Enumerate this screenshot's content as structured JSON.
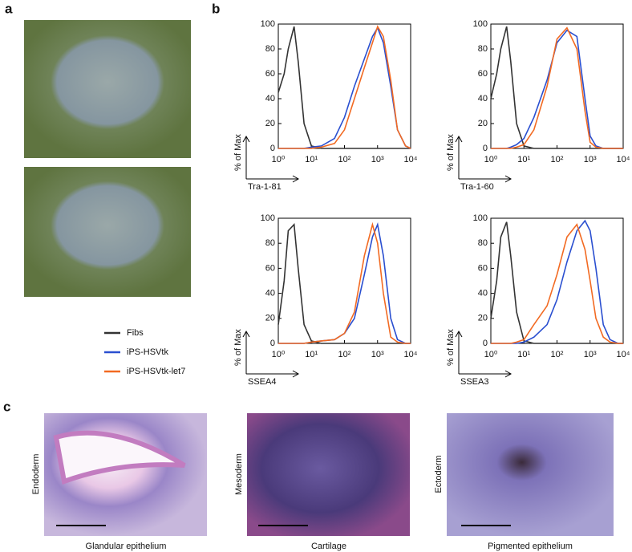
{
  "panels": {
    "a": "a",
    "b": "b",
    "c": "c"
  },
  "legend": [
    {
      "name": "Fibs",
      "color": "#333333"
    },
    {
      "name": "iPS-HSVtk",
      "color": "#2a4fd0"
    },
    {
      "name": "iPS-HSVtk-let7",
      "color": "#f26a22"
    }
  ],
  "chart_data": [
    {
      "type": "line",
      "xlabel": "Tra-1-81",
      "ylabel": "% of Max",
      "xscale": "log",
      "xlim": [
        1,
        10000
      ],
      "ylim": [
        0,
        100
      ],
      "xticks": [
        {
          "value": 1,
          "label": "10⁰"
        },
        {
          "value": 10,
          "label": "10¹"
        },
        {
          "value": 100,
          "label": "10²"
        },
        {
          "value": 1000,
          "label": "10³"
        },
        {
          "value": 10000,
          "label": "10⁴"
        }
      ],
      "yticks": [
        0,
        20,
        40,
        60,
        80,
        100
      ],
      "x": [
        1,
        1.5,
        2,
        3,
        4,
        6,
        10,
        20,
        50,
        100,
        200,
        400,
        700,
        1000,
        1500,
        2500,
        4000,
        7000,
        10000
      ],
      "series": [
        {
          "color": "#333333",
          "values": [
            45,
            60,
            80,
            98,
            70,
            20,
            2,
            0,
            0,
            0,
            0,
            0,
            0,
            0,
            0,
            0,
            0,
            0,
            0
          ]
        },
        {
          "color": "#2a4fd0",
          "values": [
            0,
            0,
            0,
            0,
            0,
            0,
            1,
            2,
            8,
            25,
            50,
            72,
            90,
            97,
            85,
            50,
            15,
            2,
            0
          ]
        },
        {
          "color": "#f26a22",
          "values": [
            0,
            0,
            0,
            0,
            0,
            0,
            0,
            1,
            4,
            15,
            40,
            65,
            85,
            98,
            90,
            55,
            15,
            2,
            0
          ]
        }
      ]
    },
    {
      "type": "line",
      "xlabel": "Tra-1-60",
      "ylabel": "% of Max",
      "xscale": "log",
      "xlim": [
        1,
        10000
      ],
      "ylim": [
        0,
        100
      ],
      "xticks": [
        {
          "value": 1,
          "label": "10⁰"
        },
        {
          "value": 10,
          "label": "10¹"
        },
        {
          "value": 100,
          "label": "10²"
        },
        {
          "value": 1000,
          "label": "10³"
        },
        {
          "value": 10000,
          "label": "10⁴"
        }
      ],
      "yticks": [
        0,
        20,
        40,
        60,
        80,
        100
      ],
      "x": [
        1,
        1.5,
        2,
        3,
        4,
        6,
        10,
        20,
        50,
        100,
        200,
        400,
        700,
        1000,
        1500,
        2500,
        4000,
        7000,
        10000
      ],
      "series": [
        {
          "color": "#333333",
          "values": [
            40,
            60,
            80,
            98,
            70,
            20,
            2,
            0,
            0,
            0,
            0,
            0,
            0,
            0,
            0,
            0,
            0,
            0,
            0
          ]
        },
        {
          "color": "#2a4fd0",
          "values": [
            0,
            0,
            0,
            0,
            1,
            3,
            8,
            25,
            55,
            85,
            95,
            90,
            40,
            10,
            2,
            0,
            0,
            0,
            0
          ]
        },
        {
          "color": "#f26a22",
          "values": [
            0,
            0,
            0,
            0,
            0,
            1,
            3,
            15,
            50,
            88,
            97,
            80,
            30,
            5,
            1,
            0,
            0,
            0,
            0
          ]
        }
      ]
    },
    {
      "type": "line",
      "xlabel": "SSEA4",
      "ylabel": "% of Max",
      "xscale": "log",
      "xlim": [
        1,
        10000
      ],
      "ylim": [
        0,
        100
      ],
      "xticks": [
        {
          "value": 1,
          "label": "10⁰"
        },
        {
          "value": 10,
          "label": "10¹"
        },
        {
          "value": 100,
          "label": "10²"
        },
        {
          "value": 1000,
          "label": "10³"
        },
        {
          "value": 10000,
          "label": "10⁴"
        }
      ],
      "yticks": [
        0,
        20,
        40,
        60,
        80,
        100
      ],
      "x": [
        1,
        1.5,
        2,
        3,
        4,
        6,
        10,
        20,
        50,
        100,
        200,
        400,
        700,
        1000,
        1500,
        2500,
        4000,
        7000,
        10000
      ],
      "series": [
        {
          "color": "#333333",
          "values": [
            15,
            50,
            90,
            95,
            60,
            15,
            2,
            0,
            0,
            0,
            0,
            0,
            0,
            0,
            0,
            0,
            0,
            0,
            0
          ]
        },
        {
          "color": "#2a4fd0",
          "values": [
            0,
            0,
            0,
            0,
            0,
            0,
            1,
            2,
            3,
            8,
            20,
            55,
            85,
            95,
            70,
            20,
            3,
            0,
            0
          ]
        },
        {
          "color": "#f26a22",
          "values": [
            0,
            0,
            0,
            0,
            0,
            0,
            1,
            2,
            3,
            8,
            25,
            70,
            95,
            80,
            40,
            5,
            1,
            0,
            0
          ]
        }
      ]
    },
    {
      "type": "line",
      "xlabel": "SSEA3",
      "ylabel": "% of Max",
      "xscale": "log",
      "xlim": [
        1,
        10000
      ],
      "ylim": [
        0,
        100
      ],
      "xticks": [
        {
          "value": 1,
          "label": "10⁰"
        },
        {
          "value": 10,
          "label": "10¹"
        },
        {
          "value": 100,
          "label": "10²"
        },
        {
          "value": 1000,
          "label": "10³"
        },
        {
          "value": 10000,
          "label": "10⁴"
        }
      ],
      "yticks": [
        0,
        20,
        40,
        60,
        80,
        100
      ],
      "x": [
        1,
        1.5,
        2,
        3,
        4,
        6,
        10,
        20,
        50,
        100,
        200,
        400,
        700,
        1000,
        1500,
        2500,
        4000,
        7000,
        10000
      ],
      "series": [
        {
          "color": "#333333",
          "values": [
            20,
            50,
            85,
            97,
            70,
            25,
            2,
            0,
            0,
            0,
            0,
            0,
            0,
            0,
            0,
            0,
            0,
            0,
            0
          ]
        },
        {
          "color": "#2a4fd0",
          "values": [
            0,
            0,
            0,
            0,
            0,
            0,
            1,
            5,
            15,
            35,
            65,
            90,
            98,
            90,
            60,
            15,
            3,
            0,
            0
          ]
        },
        {
          "color": "#f26a22",
          "values": [
            0,
            0,
            0,
            0,
            0,
            1,
            3,
            15,
            30,
            55,
            85,
            95,
            75,
            50,
            20,
            5,
            1,
            0,
            0
          ]
        }
      ]
    }
  ],
  "tissues": [
    {
      "layer": "Endoderm",
      "caption": "Glandular epithelium"
    },
    {
      "layer": "Mesoderm",
      "caption": "Cartilage"
    },
    {
      "layer": "Ectoderm",
      "caption": "Pigmented epithelium"
    }
  ]
}
